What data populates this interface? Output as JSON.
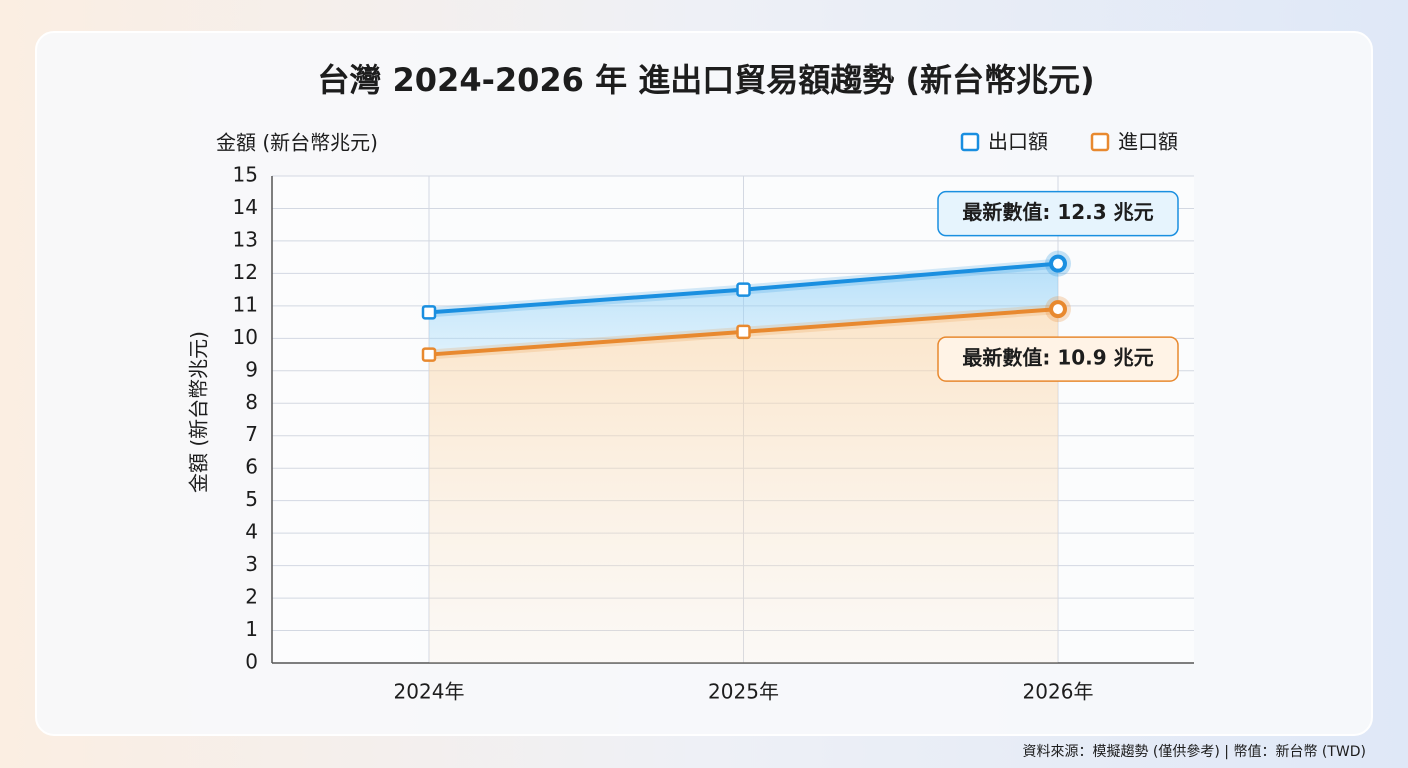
{
  "chart_data": {
    "type": "line",
    "title": "台灣 2024-2026 年 進出口貿易額趨勢 (新台幣兆元)",
    "y_label": "金額 (新台幣兆元)",
    "categories": [
      "2024年",
      "2025年",
      "2026年"
    ],
    "series": [
      {
        "name": "出口額",
        "color": "#1a8fe0",
        "values": [
          10.8,
          11.5,
          12.3
        ],
        "value_labels": [
          null,
          null,
          "最新數值: 12.3 兆元"
        ]
      },
      {
        "name": "進口額",
        "color": "#e8892f",
        "values": [
          9.5,
          10.2,
          10.9
        ],
        "value_labels": [
          null,
          null,
          "最新數值: 10.9 兆元"
        ]
      }
    ],
    "ylim": [
      0,
      15
    ],
    "yticks": [
      0,
      1,
      2,
      3,
      4,
      5,
      6,
      7,
      8,
      9,
      10,
      11,
      12,
      13,
      14,
      15
    ],
    "grid": true,
    "legend": "top-right",
    "source": "資料來源：模擬趨勢 (僅供參考) | 幣值：新台幣 (TWD)"
  }
}
